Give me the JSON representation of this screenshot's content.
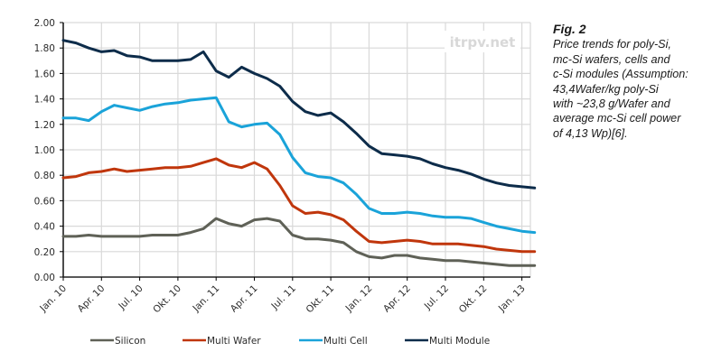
{
  "chart_data": {
    "type": "line",
    "title": "",
    "xlabel": "",
    "ylabel": "",
    "ylim": [
      0,
      2.0
    ],
    "yticks": [
      "0.00",
      "0.20",
      "0.40",
      "0.60",
      "0.80",
      "1.00",
      "1.20",
      "1.40",
      "1.60",
      "1.80",
      "2.00"
    ],
    "xticks": [
      "Jan. 10",
      "Apr. 10",
      "Jul. 10",
      "Okt. 10",
      "Jan. 11",
      "Apr. 11",
      "Jul. 11",
      "Okt. 11",
      "Jan. 12",
      "Apr. 12",
      "Jul. 12",
      "Okt. 12",
      "Jan. 13"
    ],
    "x_months": [
      0,
      1,
      2,
      3,
      4,
      5,
      6,
      7,
      8,
      9,
      10,
      11,
      12,
      13,
      14,
      15,
      16,
      17,
      18,
      19,
      20,
      21,
      22,
      23,
      24,
      25,
      26,
      27,
      28,
      29,
      30,
      31,
      32,
      33,
      34,
      35,
      36,
      37
    ],
    "grid": true,
    "legend_position": "bottom",
    "watermark": "itrpv.net",
    "series": [
      {
        "name": "Silicon",
        "color": "#5f6157",
        "values": [
          0.32,
          0.32,
          0.33,
          0.32,
          0.32,
          0.32,
          0.32,
          0.33,
          0.33,
          0.33,
          0.35,
          0.38,
          0.46,
          0.42,
          0.4,
          0.45,
          0.46,
          0.44,
          0.33,
          0.3,
          0.3,
          0.29,
          0.27,
          0.2,
          0.16,
          0.15,
          0.17,
          0.17,
          0.15,
          0.14,
          0.13,
          0.13,
          0.12,
          0.11,
          0.1,
          0.09,
          0.09,
          0.09
        ]
      },
      {
        "name": "Multi Wafer",
        "color": "#c0360c",
        "values": [
          0.78,
          0.79,
          0.82,
          0.83,
          0.85,
          0.83,
          0.84,
          0.85,
          0.86,
          0.86,
          0.87,
          0.9,
          0.93,
          0.88,
          0.86,
          0.9,
          0.85,
          0.72,
          0.56,
          0.5,
          0.51,
          0.49,
          0.45,
          0.36,
          0.28,
          0.27,
          0.28,
          0.29,
          0.28,
          0.26,
          0.26,
          0.26,
          0.25,
          0.24,
          0.22,
          0.21,
          0.2,
          0.2
        ]
      },
      {
        "name": "Multi Cell",
        "color": "#1aa3d9",
        "values": [
          1.25,
          1.25,
          1.23,
          1.3,
          1.35,
          1.33,
          1.31,
          1.34,
          1.36,
          1.37,
          1.39,
          1.4,
          1.41,
          1.22,
          1.18,
          1.2,
          1.21,
          1.12,
          0.94,
          0.82,
          0.79,
          0.78,
          0.74,
          0.65,
          0.54,
          0.5,
          0.5,
          0.51,
          0.5,
          0.48,
          0.47,
          0.47,
          0.46,
          0.43,
          0.4,
          0.38,
          0.36,
          0.35
        ]
      },
      {
        "name": "Multi Module",
        "color": "#0d2c4a",
        "values": [
          1.86,
          1.84,
          1.8,
          1.77,
          1.78,
          1.74,
          1.73,
          1.7,
          1.7,
          1.7,
          1.71,
          1.77,
          1.62,
          1.57,
          1.65,
          1.6,
          1.56,
          1.5,
          1.38,
          1.3,
          1.27,
          1.29,
          1.22,
          1.13,
          1.03,
          0.97,
          0.96,
          0.95,
          0.93,
          0.89,
          0.86,
          0.84,
          0.81,
          0.77,
          0.74,
          0.72,
          0.71,
          0.7
        ]
      }
    ]
  },
  "caption": {
    "fig_label": "Fig. 2",
    "lines": [
      "Price trends for poly-Si,",
      "mc-Si wafers, cells and",
      "c-Si modules (Assumption:",
      "43,4Wafer/kg poly-Si",
      "with ~23,8 g/Wafer and",
      "average mc-Si cell power",
      "of 4,13 Wp)[6]."
    ]
  }
}
